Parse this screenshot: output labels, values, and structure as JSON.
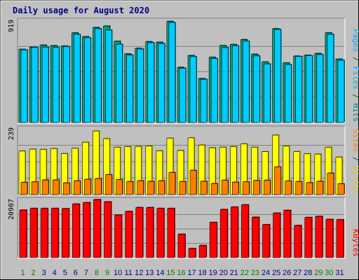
{
  "chart_data": [
    {
      "type": "bar",
      "title": "Daily usage for August 2020",
      "panel": "hits",
      "ymax_label": "919",
      "ymax": 919,
      "ylim": [
        0,
        919
      ],
      "grid": true,
      "right_labels": [
        {
          "text": "Pages",
          "color": "#00b0f0"
        },
        {
          "text": " / ",
          "color": "#006400"
        },
        {
          "text": "Files",
          "color": "#00b0f0"
        },
        {
          "text": " / ",
          "color": "#006400"
        },
        {
          "text": "Hits",
          "color": "#008080"
        }
      ],
      "categories": [
        "1",
        "2",
        "3",
        "4",
        "5",
        "6",
        "7",
        "8",
        "9",
        "10",
        "11",
        "12",
        "13",
        "14",
        "15",
        "16",
        "17",
        "18",
        "19",
        "20",
        "21",
        "22",
        "23",
        "24",
        "25",
        "26",
        "27",
        "28",
        "29",
        "30",
        "31"
      ],
      "series": [
        {
          "name": "Hits",
          "color": "#00a080",
          "values": [
            662,
            683,
            700,
            695,
            692,
            811,
            777,
            860,
            873,
            735,
            621,
            671,
            731,
            727,
            915,
            499,
            606,
            398,
            590,
            696,
            706,
            750,
            618,
            547,
            849,
            539,
            601,
            609,
            625,
            812,
            573
          ]
        },
        {
          "name": "Files",
          "color": "#00ccff",
          "values": [
            657,
            679,
            683,
            681,
            686,
            798,
            767,
            849,
            836,
            708,
            611,
            665,
            722,
            714,
            905,
            491,
            596,
            391,
            579,
            678,
            694,
            736,
            603,
            531,
            842,
            523,
            597,
            604,
            615,
            798,
            563
          ]
        }
      ]
    },
    {
      "type": "bar",
      "panel": "sites-visits",
      "ymax_label": "239",
      "ymax": 239,
      "ylim": [
        0,
        239
      ],
      "grid": true,
      "right_labels": [
        {
          "text": "Sites",
          "color": "#ff8000"
        },
        {
          "text": " / ",
          "color": "#006400"
        },
        {
          "text": "Visits",
          "color": "#e0d000"
        }
      ],
      "categories": [
        "1",
        "2",
        "3",
        "4",
        "5",
        "6",
        "7",
        "8",
        "9",
        "10",
        "11",
        "12",
        "13",
        "14",
        "15",
        "16",
        "17",
        "18",
        "19",
        "20",
        "21",
        "22",
        "23",
        "24",
        "25",
        "26",
        "27",
        "28",
        "29",
        "30",
        "31"
      ],
      "series": [
        {
          "name": "Visits",
          "color": "#ffff00",
          "values": [
            158,
            165,
            164,
            167,
            149,
            168,
            190,
            231,
            203,
            172,
            174,
            175,
            176,
            159,
            205,
            160,
            206,
            180,
            170,
            172,
            174,
            184,
            172,
            156,
            216,
            176,
            156,
            148,
            147,
            172,
            136
          ]
        },
        {
          "name": "Sites",
          "color": "#ff8000",
          "values": [
            44,
            46,
            53,
            53,
            42,
            50,
            55,
            58,
            72,
            54,
            47,
            50,
            48,
            50,
            80,
            47,
            88,
            48,
            40,
            52,
            45,
            46,
            51,
            52,
            100,
            49,
            47,
            43,
            48,
            78,
            39
          ]
        }
      ]
    },
    {
      "type": "bar",
      "panel": "kbytes",
      "ymax_label": "20907",
      "ymax": 20907,
      "ylim": [
        0,
        20907
      ],
      "grid": true,
      "right_labels": [
        {
          "text": "KBytes",
          "color": "#ff0000"
        }
      ],
      "categories": [
        "1",
        "2",
        "3",
        "4",
        "5",
        "6",
        "7",
        "8",
        "9",
        "10",
        "11",
        "12",
        "13",
        "14",
        "15",
        "16",
        "17",
        "18",
        "19",
        "20",
        "21",
        "22",
        "23",
        "24",
        "25",
        "26",
        "27",
        "28",
        "29",
        "30",
        "31"
      ],
      "series": [
        {
          "name": "KBytes",
          "color": "#ff0000",
          "values": [
            17300,
            17900,
            17900,
            17900,
            17800,
            19500,
            20000,
            21100,
            20300,
            15500,
            16800,
            18200,
            18200,
            17900,
            17900,
            8500,
            3300,
            4400,
            12800,
            17500,
            18400,
            19200,
            14700,
            12000,
            16200,
            17200,
            11700,
            14600,
            15000,
            13900,
            13800
          ]
        }
      ]
    }
  ],
  "x_label_colors": {
    "weekend": "#008000",
    "weekday": "#00008b"
  },
  "weekend_days": [
    "1",
    "2",
    "8",
    "9",
    "15",
    "16",
    "22",
    "23",
    "29",
    "30"
  ]
}
